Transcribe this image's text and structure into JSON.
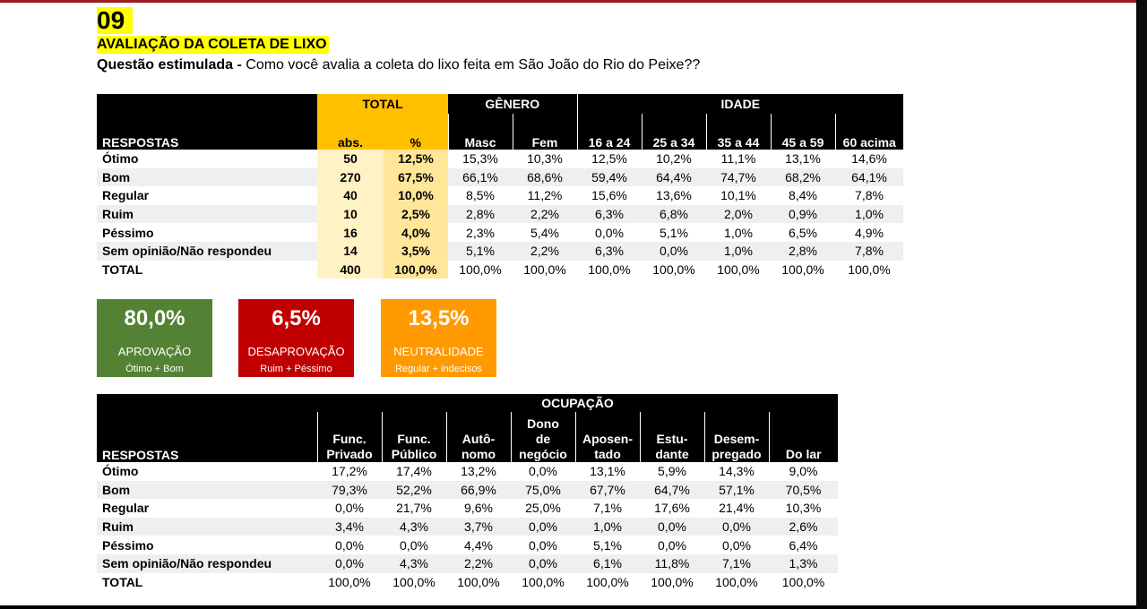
{
  "page_number": "09",
  "title": "AVALIAÇÃO DA COLETA DE LIXO",
  "subtitle": {
    "bold": "Questão estimulada - ",
    "text": "Como você avalia a coleta do lixo feita em São João do Rio do Peixe??"
  },
  "table1": {
    "groups": {
      "total": "TOTAL",
      "genero": "GÊNERO",
      "idade": "IDADE"
    },
    "respostas_label": "RESPOSTAS",
    "columns": [
      "abs.",
      "%",
      "Masc",
      "Fem",
      "16 a 24",
      "25 a 34",
      "35 a 44",
      "45 a 59",
      "60 acima"
    ],
    "rows": [
      {
        "label": "Ótimo",
        "values": [
          "50",
          "12,5%",
          "15,3%",
          "10,3%",
          "12,5%",
          "10,2%",
          "11,1%",
          "13,1%",
          "14,6%"
        ]
      },
      {
        "label": "Bom",
        "values": [
          "270",
          "67,5%",
          "66,1%",
          "68,6%",
          "59,4%",
          "64,4%",
          "74,7%",
          "68,2%",
          "64,1%"
        ]
      },
      {
        "label": "Regular",
        "values": [
          "40",
          "10,0%",
          "8,5%",
          "11,2%",
          "15,6%",
          "13,6%",
          "10,1%",
          "8,4%",
          "7,8%"
        ]
      },
      {
        "label": "Ruim",
        "values": [
          "10",
          "2,5%",
          "2,8%",
          "2,2%",
          "6,3%",
          "6,8%",
          "2,0%",
          "0,9%",
          "1,0%"
        ]
      },
      {
        "label": "Péssimo",
        "values": [
          "16",
          "4,0%",
          "2,3%",
          "5,4%",
          "0,0%",
          "5,1%",
          "1,0%",
          "6,5%",
          "4,9%"
        ]
      },
      {
        "label": "Sem opinião/Não respondeu",
        "values": [
          "14",
          "3,5%",
          "5,1%",
          "2,2%",
          "6,3%",
          "0,0%",
          "1,0%",
          "2,8%",
          "7,8%"
        ]
      },
      {
        "label": "TOTAL",
        "values": [
          "400",
          "100,0%",
          "100,0%",
          "100,0%",
          "100,0%",
          "100,0%",
          "100,0%",
          "100,0%",
          "100,0%"
        ]
      }
    ]
  },
  "cards": [
    {
      "pct": "80,0%",
      "label": "APROVAÇÃO",
      "sub": "Ótimo + Bom",
      "color": "#548235"
    },
    {
      "pct": "6,5%",
      "label": "DESAPROVAÇÃO",
      "sub": "Ruim + Péssimo",
      "color": "#c00000"
    },
    {
      "pct": "13,5%",
      "label": "NEUTRALIDADE",
      "sub": "Regular + indecisos",
      "color": "#ff9900"
    }
  ],
  "table2": {
    "group": "OCUPAÇÃO",
    "respostas_label": "RESPOSTAS",
    "columns": [
      [
        "Func.",
        "Privado"
      ],
      [
        "Func.",
        "Público"
      ],
      [
        "Autô-",
        "nomo"
      ],
      [
        "Dono",
        "de",
        "negócio"
      ],
      [
        "Aposen-",
        "tado"
      ],
      [
        "Estu-",
        "dante"
      ],
      [
        "Desem-",
        "pregado"
      ],
      [
        "Do lar"
      ]
    ],
    "rows": [
      {
        "label": "Ótimo",
        "values": [
          "17,2%",
          "17,4%",
          "13,2%",
          "0,0%",
          "13,1%",
          "5,9%",
          "14,3%",
          "9,0%"
        ]
      },
      {
        "label": "Bom",
        "values": [
          "79,3%",
          "52,2%",
          "66,9%",
          "75,0%",
          "67,7%",
          "64,7%",
          "57,1%",
          "70,5%"
        ]
      },
      {
        "label": "Regular",
        "values": [
          "0,0%",
          "21,7%",
          "9,6%",
          "25,0%",
          "7,1%",
          "17,6%",
          "21,4%",
          "10,3%"
        ]
      },
      {
        "label": "Ruim",
        "values": [
          "3,4%",
          "4,3%",
          "3,7%",
          "0,0%",
          "1,0%",
          "0,0%",
          "0,0%",
          "2,6%"
        ]
      },
      {
        "label": "Péssimo",
        "values": [
          "0,0%",
          "0,0%",
          "4,4%",
          "0,0%",
          "5,1%",
          "0,0%",
          "0,0%",
          "6,4%"
        ]
      },
      {
        "label": "Sem opinião/Não respondeu",
        "values": [
          "0,0%",
          "4,3%",
          "2,2%",
          "0,0%",
          "6,1%",
          "11,8%",
          "7,1%",
          "1,3%"
        ]
      },
      {
        "label": "TOTAL",
        "values": [
          "100,0%",
          "100,0%",
          "100,0%",
          "100,0%",
          "100,0%",
          "100,0%",
          "100,0%",
          "100,0%"
        ]
      }
    ]
  }
}
